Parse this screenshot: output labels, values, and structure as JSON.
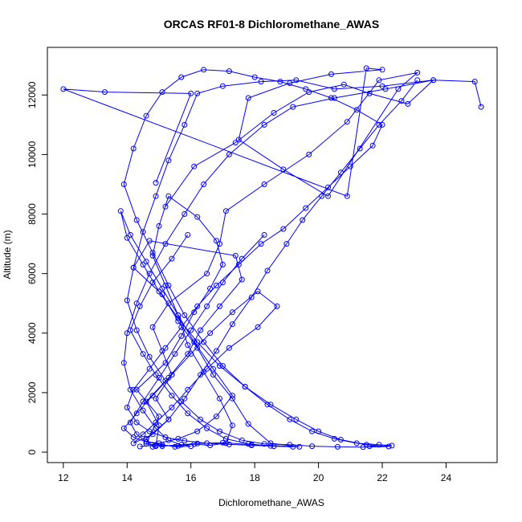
{
  "chart_data": {
    "type": "line",
    "title": "ORCAS RF01-8 Dichloromethane_AWAS",
    "xlabel": "Dichloromethane_AWAS",
    "ylabel": "Altitude (m)",
    "xlim": [
      11.5,
      25.6
    ],
    "ylim": [
      -350,
      13600
    ],
    "xticks": [
      12,
      14,
      16,
      18,
      20,
      22,
      24
    ],
    "yticks": [
      0,
      2000,
      4000,
      6000,
      8000,
      10000,
      12000
    ],
    "grid": false,
    "legend": "none",
    "color": "#0000ff",
    "marker": "open-circle",
    "series": [
      {
        "x": [
          14.9,
          16.0,
          13.3,
          12.0,
          20.9,
          21.5,
          22.0,
          20.4,
          19.1,
          17.8,
          17.5,
          18.9,
          20.3,
          22.5,
          23.1,
          21.9,
          20.9,
          19.7,
          18.3,
          17.1,
          16.9,
          16.5,
          15.3,
          14.8,
          15.1,
          15.4,
          14.9,
          15.3,
          14.6,
          14.8,
          14.9,
          15.0,
          14.6,
          15.3,
          15.9,
          16.3,
          16.9,
          17.6,
          17.4,
          14.7,
          14.2,
          15.1,
          15.6,
          16.2,
          16.7,
          17.3,
          17.8,
          18.5,
          19.4,
          17.9,
          17.0,
          16.2,
          15.1,
          14.6,
          15.0,
          14.3,
          15.2,
          15.7,
          16.1,
          16.6,
          17.0,
          16.8,
          16.2,
          15.3,
          15.0,
          14.8,
          15.2,
          15.6,
          15.9,
          16.4,
          16.9,
          17.3,
          17.1,
          16.6,
          16.1,
          15.6,
          14.9,
          14.4
        ],
        "y": [
          9050,
          12050,
          12100,
          12200,
          8600,
          12900,
          12850,
          12700,
          12400,
          11900,
          10500,
          9500,
          8600,
          12200,
          12750,
          12500,
          11100,
          10000,
          9000,
          8100,
          7000,
          6000,
          5000,
          4200,
          3400,
          2600,
          1800,
          1100,
          450,
          180,
          200,
          900,
          1700,
          2500,
          3300,
          4100,
          4900,
          5800,
          6600,
          7100,
          6200,
          5300,
          4400,
          3500,
          2600,
          1800,
          950,
          300,
          180,
          250,
          320,
          290,
          200,
          280,
          1200,
          2100,
          3000,
          3900,
          4700,
          5500,
          6300,
          7100,
          7900,
          8600,
          7600,
          6600,
          5600,
          4600,
          3600,
          2700,
          1800,
          900,
          300,
          230,
          270,
          210,
          240,
          190
        ]
      },
      {
        "x": [
          15.2,
          16.1,
          17.4,
          18.6,
          19.7,
          20.8,
          21.6,
          22.8,
          23.6,
          22.1,
          20.5,
          19.2,
          18.3,
          17.2,
          16.4,
          15.8,
          15.2,
          14.7,
          14.3,
          14.0,
          13.9,
          14.1,
          14.5,
          14.9,
          15.3,
          15.7,
          16.0,
          15.5,
          15.1,
          14.6,
          14.2,
          13.9,
          14.3,
          14.8,
          15.4,
          16.0,
          16.6,
          17.3,
          18.1,
          18.7,
          18.1,
          17.2,
          16.5,
          15.9,
          15.4,
          14.9,
          14.5,
          14.2,
          14.8,
          15.3,
          15.8,
          16.3,
          16.8,
          17.3,
          17.9,
          18.4,
          19.0,
          19.5,
          20.1,
          20.7,
          21.3,
          21.9,
          22.6,
          23.1
        ],
        "y": [
          8250,
          9600,
          10400,
          11400,
          12100,
          12350,
          12050,
          11700,
          12500,
          12200,
          11900,
          11600,
          11000,
          10000,
          9000,
          8000,
          7000,
          6000,
          5000,
          4000,
          3000,
          2100,
          1400,
          800,
          400,
          250,
          200,
          180,
          250,
          350,
          500,
          800,
          1300,
          1900,
          2600,
          3300,
          4000,
          4700,
          5400,
          4900,
          4200,
          3500,
          2800,
          2100,
          1500,
          1000,
          600,
          300,
          600,
          1100,
          1800,
          2600,
          3400,
          4300,
          5200,
          6100,
          7000,
          7800,
          8600,
          9400,
          10200,
          11000,
          11800,
          12500
        ]
      },
      {
        "x": [
          25.1,
          24.9,
          23.6,
          22.0,
          20.5,
          19.3,
          18.2,
          17.0,
          16.2,
          15.8,
          15.3,
          14.9,
          14.5,
          14.2,
          14.0,
          14.3,
          14.7,
          15.2,
          15.7,
          16.3,
          16.9,
          17.6,
          18.3,
          19.1,
          19.8,
          20.6,
          21.4,
          22.2,
          21.5,
          20.7,
          20.0,
          19.3,
          18.5,
          17.7,
          16.9,
          16.2,
          15.6,
          15.0,
          14.5,
          14.0,
          13.8,
          14.1,
          14.6,
          15.1,
          15.6,
          16.1,
          16.7,
          17.3,
          16.8,
          16.2,
          15.6,
          15.0,
          14.6,
          14.3,
          14.1,
          14.5,
          15.0,
          15.5,
          16.0,
          16.5,
          17.0,
          17.6,
          18.3
        ],
        "y": [
          11600,
          12450,
          12500,
          12300,
          12200,
          12500,
          12450,
          12300,
          12050,
          11000,
          9800,
          8600,
          7400,
          6200,
          5100,
          4100,
          3200,
          2400,
          1700,
          1100,
          700,
          400,
          280,
          250,
          200,
          180,
          170,
          190,
          250,
          420,
          700,
          1100,
          1600,
          2200,
          2900,
          3700,
          4500,
          5400,
          6300,
          7200,
          8100,
          7300,
          6400,
          5500,
          4600,
          3700,
          2800,
          1900,
          1200,
          700,
          450,
          300,
          350,
          600,
          1000,
          1700,
          2500,
          3300,
          4100,
          4900,
          5700,
          6500,
          7300
        ]
      },
      {
        "x": [
          15.9,
          15.4,
          14.8,
          14.4,
          14.1,
          14.5,
          14.9,
          15.4,
          15.9,
          16.5,
          17.1,
          17.8,
          18.5,
          19.2,
          18.6,
          17.9,
          17.2,
          16.5,
          15.8,
          15.2,
          14.7,
          14.3,
          14.0,
          14.2,
          14.7,
          15.2,
          15.7,
          16.2,
          16.8,
          17.5,
          18.2,
          18.9,
          19.6,
          20.3,
          21.0,
          21.7,
          22.0,
          21.2,
          20.4,
          19.6,
          18.8,
          18.0,
          17.2,
          16.4,
          15.7,
          15.1,
          14.6,
          14.2,
          13.9,
          14.3,
          14.8,
          15.3,
          15.8,
          16.4,
          17.0,
          17.7,
          18.4,
          19.1,
          19.8,
          20.5,
          21.2,
          21.9,
          22.3,
          21.6
        ],
        "y": [
          7300,
          6500,
          5700,
          4900,
          4100,
          3300,
          2600,
          1900,
          1300,
          800,
          450,
          280,
          210,
          180,
          200,
          230,
          260,
          300,
          380,
          500,
          700,
          1000,
          1500,
          2100,
          2800,
          3500,
          4200,
          4900,
          5600,
          6300,
          7000,
          7500,
          8200,
          8900,
          9600,
          10300,
          11000,
          11500,
          11900,
          12200,
          12450,
          12600,
          12800,
          12850,
          12600,
          12100,
          11300,
          10200,
          9000,
          7800,
          6700,
          5600,
          4600,
          3700,
          2900,
          2200,
          1600,
          1100,
          700,
          450,
          300,
          250,
          220,
          200
        ]
      }
    ]
  }
}
